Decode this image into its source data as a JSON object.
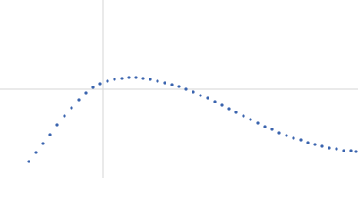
{
  "chart_data": {
    "type": "scatter",
    "x": [
      32,
      40,
      48,
      56,
      64,
      72,
      80,
      88,
      96,
      104,
      112,
      120,
      128,
      136,
      144,
      152,
      160,
      168,
      176,
      184,
      192,
      200,
      208,
      216,
      224,
      232,
      240,
      248,
      256,
      264,
      272,
      280,
      288,
      296,
      304,
      312,
      320,
      328,
      336,
      344,
      352,
      360,
      368,
      376,
      384,
      392,
      398
    ],
    "series": [
      {
        "color": "#3a64ae",
        "values": [
          19,
          29,
          39,
          49,
          60,
          70,
          79,
          88,
          96,
          102,
          106,
          109,
          111,
          112,
          113,
          113,
          112,
          111,
          109,
          107,
          105,
          103,
          100,
          97,
          93,
          90,
          86,
          82,
          78,
          74,
          70,
          66,
          62,
          58,
          55,
          51,
          48,
          45,
          43,
          40,
          38,
          36,
          34,
          33,
          31,
          31,
          30
        ]
      }
    ],
    "xlim": [
      0,
      400
    ],
    "ylim": [
      0,
      200
    ],
    "reference_lines": {
      "x": 115,
      "y": 100,
      "color": "#d4d4d4"
    }
  }
}
